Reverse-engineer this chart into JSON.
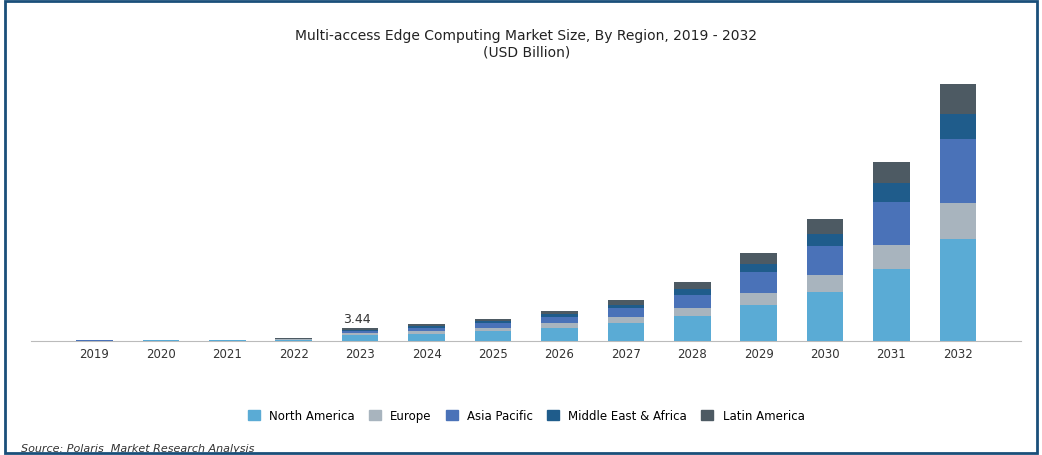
{
  "years": [
    2019,
    2020,
    2021,
    2022,
    2023,
    2024,
    2025,
    2026,
    2027,
    2028,
    2029,
    2030,
    2031,
    2032
  ],
  "regions": [
    "North America",
    "Europe",
    "Asia Pacific",
    "Middle East & Africa",
    "Latin America"
  ],
  "colors": [
    "#5aabd5",
    "#a8b4be",
    "#4a72b8",
    "#1f5c8b",
    "#4d5a63"
  ],
  "data": {
    "North America": [
      0.1,
      0.14,
      0.19,
      0.35,
      1.5,
      1.9,
      2.6,
      3.5,
      4.8,
      6.5,
      9.5,
      13.0,
      19.0,
      27.0
    ],
    "Europe": [
      0.03,
      0.04,
      0.05,
      0.09,
      0.55,
      0.65,
      0.85,
      1.15,
      1.55,
      2.2,
      3.2,
      4.5,
      6.5,
      9.5
    ],
    "Asia Pacific": [
      0.04,
      0.05,
      0.08,
      0.13,
      0.65,
      0.9,
      1.2,
      1.65,
      2.3,
      3.5,
      5.5,
      7.8,
      11.5,
      17.0
    ],
    "Middle East & Africa": [
      0.02,
      0.03,
      0.04,
      0.06,
      0.3,
      0.4,
      0.55,
      0.75,
      1.0,
      1.5,
      2.3,
      3.2,
      4.8,
      6.8
    ],
    "Latin America": [
      0.01,
      0.02,
      0.03,
      0.05,
      0.44,
      0.55,
      0.72,
      0.97,
      1.32,
      1.88,
      2.78,
      3.9,
      5.62,
      7.85
    ]
  },
  "annotation_year": 2023,
  "annotation_text": "3.44",
  "title_line1": "Multi-access Edge Computing Market Size, By Region, 2019 - 2032",
  "title_line2": "(USD Billion)",
  "source_text": "Source: Polaris  Market Research Analysis",
  "background_color": "#ffffff",
  "border_color": "#1a4f7a",
  "title_color": "#222222",
  "source_color": "#333333",
  "ylim": [
    0,
    75
  ],
  "bar_width": 0.55
}
